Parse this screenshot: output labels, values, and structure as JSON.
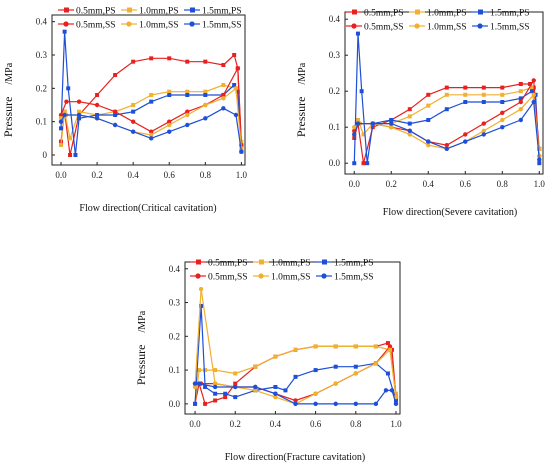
{
  "colors": {
    "mm05": "#e8201f",
    "mm10": "#f0b030",
    "mm15": "#1e4fd8"
  },
  "chart_data": [
    {
      "type": "line",
      "xlabel": "Flow direction(Critical cavitation)",
      "ylabel_main": "Pressure",
      "ylabel_unit": "/MPa",
      "xlim": [
        -0.05,
        1.02
      ],
      "ylim": [
        -0.03,
        0.42
      ],
      "xticks": [
        "0.0",
        "0.2",
        "0.4",
        "0.6",
        "0.8",
        "1.0"
      ],
      "yticks": [
        "0",
        "0.1",
        "0.2",
        "0.3",
        "0.4"
      ],
      "series": [
        {
          "name": "0.5mm,PS",
          "color": "#e8201f",
          "marker": "square",
          "x": [
            0,
            0.02,
            0.05,
            0.1,
            0.2,
            0.3,
            0.4,
            0.5,
            0.6,
            0.7,
            0.8,
            0.9,
            0.96,
            0.98,
            1.0
          ],
          "y": [
            0.04,
            0.13,
            0.0,
            0.12,
            0.18,
            0.24,
            0.28,
            0.29,
            0.29,
            0.28,
            0.28,
            0.27,
            0.3,
            0.26,
            0.03
          ]
        },
        {
          "name": "1.0mm,PS",
          "color": "#f0b030",
          "marker": "square",
          "x": [
            0,
            0.02,
            0.05,
            0.1,
            0.2,
            0.3,
            0.4,
            0.5,
            0.6,
            0.7,
            0.8,
            0.9,
            0.97,
            1.0
          ],
          "y": [
            0.03,
            0.13,
            0.05,
            0.13,
            0.12,
            0.13,
            0.15,
            0.18,
            0.19,
            0.19,
            0.19,
            0.21,
            0.2,
            0.04
          ]
        },
        {
          "name": "1.5mm,PS",
          "color": "#1e4fd8",
          "marker": "square",
          "x": [
            0,
            0.02,
            0.04,
            0.08,
            0.1,
            0.2,
            0.3,
            0.4,
            0.5,
            0.6,
            0.7,
            0.8,
            0.9,
            0.96,
            0.98,
            1.0
          ],
          "y": [
            0.08,
            0.37,
            0.2,
            0.0,
            0.11,
            0.12,
            0.12,
            0.13,
            0.16,
            0.18,
            0.18,
            0.18,
            0.18,
            0.21,
            0.19,
            0.01
          ]
        },
        {
          "name": "0.5mm,SS",
          "color": "#e8201f",
          "marker": "circle",
          "x": [
            0,
            0.03,
            0.1,
            0.2,
            0.3,
            0.4,
            0.5,
            0.6,
            0.7,
            0.8,
            0.9,
            0.98,
            1.0
          ],
          "y": [
            0.12,
            0.16,
            0.16,
            0.15,
            0.13,
            0.1,
            0.07,
            0.1,
            0.13,
            0.15,
            0.18,
            0.26,
            0.03
          ]
        },
        {
          "name": "1.0mm,SS",
          "color": "#f0b030",
          "marker": "circle",
          "x": [
            0,
            0.03,
            0.1,
            0.2,
            0.3,
            0.4,
            0.5,
            0.6,
            0.7,
            0.8,
            0.9,
            0.97,
            1.0
          ],
          "y": [
            0.11,
            0.12,
            0.12,
            0.11,
            0.09,
            0.07,
            0.06,
            0.09,
            0.12,
            0.15,
            0.17,
            0.2,
            0.02
          ]
        },
        {
          "name": "1.5mm,SS",
          "color": "#1e4fd8",
          "marker": "circle",
          "x": [
            0,
            0.02,
            0.1,
            0.2,
            0.3,
            0.4,
            0.5,
            0.6,
            0.7,
            0.8,
            0.9,
            0.97,
            1.0
          ],
          "y": [
            0.1,
            0.12,
            0.12,
            0.11,
            0.09,
            0.07,
            0.05,
            0.07,
            0.09,
            0.11,
            0.14,
            0.12,
            0.01
          ]
        }
      ]
    },
    {
      "type": "line",
      "xlabel": "Flow direction(Severe cavitation)",
      "ylabel_main": "Pressure",
      "ylabel_unit": "/MPa",
      "xlim": [
        -0.05,
        1.02
      ],
      "ylim": [
        -0.03,
        0.42
      ],
      "xticks": [
        "0.0",
        "0.2",
        "0.4",
        "0.6",
        "0.8",
        "1.0"
      ],
      "yticks": [
        "0.0",
        "0.1",
        "0.2",
        "0.3",
        "0.4"
      ],
      "series": [
        {
          "name": "0.5mm,PS",
          "color": "#e8201f",
          "marker": "square",
          "x": [
            0,
            0.02,
            0.05,
            0.1,
            0.2,
            0.3,
            0.4,
            0.5,
            0.6,
            0.7,
            0.8,
            0.9,
            0.95,
            0.97,
            1.0
          ],
          "y": [
            0.07,
            0.11,
            0.0,
            0.1,
            0.12,
            0.15,
            0.19,
            0.21,
            0.21,
            0.21,
            0.21,
            0.22,
            0.22,
            0.21,
            0.04
          ]
        },
        {
          "name": "1.0mm,PS",
          "color": "#f0b030",
          "marker": "square",
          "x": [
            0,
            0.02,
            0.05,
            0.1,
            0.2,
            0.3,
            0.4,
            0.5,
            0.6,
            0.7,
            0.8,
            0.9,
            0.96,
            1.0
          ],
          "y": [
            0.08,
            0.12,
            0.08,
            0.11,
            0.11,
            0.13,
            0.16,
            0.19,
            0.19,
            0.19,
            0.19,
            0.2,
            0.21,
            0.04
          ]
        },
        {
          "name": "1.5mm,PS",
          "color": "#1e4fd8",
          "marker": "square",
          "x": [
            0,
            0.02,
            0.04,
            0.07,
            0.1,
            0.2,
            0.3,
            0.4,
            0.5,
            0.6,
            0.7,
            0.8,
            0.9,
            0.96,
            0.98,
            1.0
          ],
          "y": [
            0.0,
            0.36,
            0.2,
            0.0,
            0.11,
            0.12,
            0.11,
            0.12,
            0.15,
            0.17,
            0.17,
            0.17,
            0.18,
            0.2,
            0.19,
            0.0
          ]
        },
        {
          "name": "0.5mm,SS",
          "color": "#e8201f",
          "marker": "circle",
          "x": [
            0,
            0.03,
            0.1,
            0.2,
            0.3,
            0.4,
            0.5,
            0.6,
            0.7,
            0.8,
            0.9,
            0.97,
            1.0
          ],
          "y": [
            0.09,
            0.11,
            0.11,
            0.1,
            0.09,
            0.06,
            0.05,
            0.08,
            0.11,
            0.14,
            0.17,
            0.23,
            0.02
          ]
        },
        {
          "name": "1.0mm,SS",
          "color": "#f0b030",
          "marker": "circle",
          "x": [
            0,
            0.03,
            0.1,
            0.2,
            0.3,
            0.4,
            0.5,
            0.6,
            0.7,
            0.8,
            0.9,
            0.97,
            1.0
          ],
          "y": [
            0.1,
            0.11,
            0.11,
            0.1,
            0.08,
            0.05,
            0.04,
            0.06,
            0.09,
            0.12,
            0.15,
            0.19,
            0.02
          ]
        },
        {
          "name": "1.5mm,SS",
          "color": "#1e4fd8",
          "marker": "circle",
          "x": [
            0,
            0.02,
            0.1,
            0.2,
            0.3,
            0.4,
            0.5,
            0.6,
            0.7,
            0.8,
            0.9,
            0.97,
            1.0
          ],
          "y": [
            0.08,
            0.11,
            0.11,
            0.11,
            0.09,
            0.06,
            0.04,
            0.06,
            0.08,
            0.1,
            0.12,
            0.17,
            0.01
          ]
        }
      ]
    },
    {
      "type": "line",
      "xlabel": "Flow direction(Fracture cavitation)",
      "ylabel_main": "Pressure",
      "ylabel_unit": "/MPa",
      "xlim": [
        -0.05,
        1.02
      ],
      "ylim": [
        -0.03,
        0.42
      ],
      "xticks": [
        "0.0",
        "0.2",
        "0.4",
        "0.6",
        "0.8",
        "1.0"
      ],
      "yticks": [
        "0.0",
        "0.1",
        "0.2",
        "0.3",
        "0.4"
      ],
      "series": [
        {
          "name": "0.5mm,PS",
          "color": "#e8201f",
          "marker": "square",
          "x": [
            0,
            0.02,
            0.05,
            0.1,
            0.15,
            0.2,
            0.3,
            0.4,
            0.5,
            0.6,
            0.7,
            0.8,
            0.9,
            0.96,
            0.98,
            1.0
          ],
          "y": [
            0.0,
            0.06,
            0.0,
            0.01,
            0.02,
            0.06,
            0.11,
            0.14,
            0.16,
            0.17,
            0.17,
            0.17,
            0.17,
            0.18,
            0.16,
            0.02
          ]
        },
        {
          "name": "1.0mm,PS",
          "color": "#f0b030",
          "marker": "square",
          "x": [
            0,
            0.02,
            0.05,
            0.1,
            0.2,
            0.3,
            0.4,
            0.5,
            0.6,
            0.7,
            0.8,
            0.9,
            0.97,
            1.0
          ],
          "y": [
            0.0,
            0.1,
            0.1,
            0.1,
            0.09,
            0.11,
            0.14,
            0.16,
            0.17,
            0.17,
            0.17,
            0.17,
            0.16,
            0.03
          ]
        },
        {
          "name": "1.5mm,PS",
          "color": "#1e4fd8",
          "marker": "square",
          "x": [
            0,
            0.03,
            0.05,
            0.1,
            0.15,
            0.2,
            0.3,
            0.4,
            0.45,
            0.5,
            0.6,
            0.7,
            0.8,
            0.9,
            0.96,
            1.0
          ],
          "y": [
            0.0,
            0.29,
            0.05,
            0.03,
            0.03,
            0.02,
            0.04,
            0.05,
            0.04,
            0.08,
            0.1,
            0.11,
            0.11,
            0.12,
            0.09,
            0.01
          ]
        },
        {
          "name": "0.5mm,SS",
          "color": "#e8201f",
          "marker": "circle",
          "x": [
            0,
            0.03,
            0.1,
            0.2,
            0.3,
            0.4,
            0.5,
            0.6,
            0.7,
            0.8,
            0.9,
            0.97,
            1.0
          ],
          "y": [
            0.06,
            0.06,
            0.06,
            0.05,
            0.05,
            0.03,
            0.01,
            0.03,
            0.06,
            0.09,
            0.12,
            0.17,
            0.02
          ]
        },
        {
          "name": "1.0mm,SS",
          "color": "#f0b030",
          "marker": "circle",
          "x": [
            0,
            0.03,
            0.1,
            0.2,
            0.3,
            0.4,
            0.5,
            0.6,
            0.7,
            0.8,
            0.9,
            0.97,
            1.0
          ],
          "y": [
            0.05,
            0.34,
            0.06,
            0.05,
            0.04,
            0.02,
            0.0,
            0.03,
            0.06,
            0.09,
            0.12,
            0.16,
            0.02
          ]
        },
        {
          "name": "1.5mm,SS",
          "color": "#1e4fd8",
          "marker": "circle",
          "x": [
            0,
            0.02,
            0.1,
            0.2,
            0.3,
            0.4,
            0.5,
            0.6,
            0.7,
            0.8,
            0.9,
            0.95,
            0.98,
            1.0
          ],
          "y": [
            0.06,
            0.06,
            0.05,
            0.05,
            0.05,
            0.03,
            0.0,
            0.0,
            0.0,
            0.0,
            0.0,
            0.04,
            0.04,
            0.0
          ]
        }
      ]
    }
  ]
}
